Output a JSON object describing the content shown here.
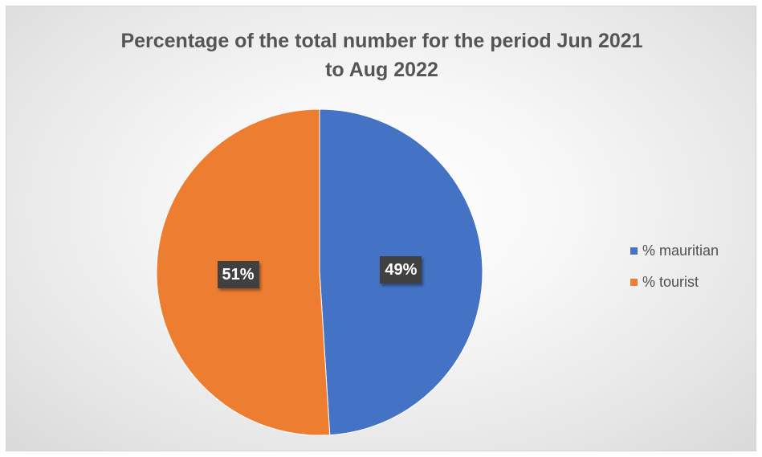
{
  "chart_data": {
    "type": "pie",
    "title_lines": [
      "Percentage of the total number for the period Jun 2021",
      "to Aug 2022"
    ],
    "title": "Percentage of the total number for the period Jun 2021 to Aug 2022",
    "slices": [
      {
        "label": "% mauritian",
        "value": 49,
        "data_label": "49%",
        "color": "#4472C4"
      },
      {
        "label": "% tourist",
        "value": 51,
        "data_label": "51%",
        "color": "#ED7D31"
      }
    ],
    "legend_position": "right"
  }
}
